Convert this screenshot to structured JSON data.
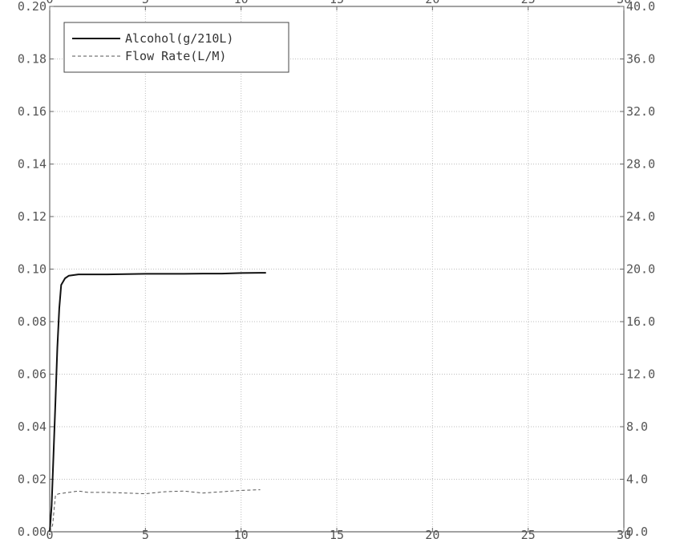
{
  "chart_data": {
    "type": "line",
    "title": "",
    "xlabel": "",
    "ylabel": "",
    "y2label": "",
    "xlim": [
      0,
      30
    ],
    "ylim": [
      0,
      0.2
    ],
    "y2lim": [
      0,
      40
    ],
    "grid": true,
    "legend_position": "top-left",
    "x_ticks": [
      {
        "value": 0,
        "label": "0"
      },
      {
        "value": 5,
        "label": "5"
      },
      {
        "value": 10,
        "label": "10"
      },
      {
        "value": 15,
        "label": "15"
      },
      {
        "value": 20,
        "label": "20"
      },
      {
        "value": 25,
        "label": "25"
      },
      {
        "value": 30,
        "label": "30"
      }
    ],
    "y_ticks": [
      {
        "value": 0.0,
        "label": "0.00"
      },
      {
        "value": 0.02,
        "label": "0.02"
      },
      {
        "value": 0.04,
        "label": "0.04"
      },
      {
        "value": 0.06,
        "label": "0.06"
      },
      {
        "value": 0.08,
        "label": "0.08"
      },
      {
        "value": 0.1,
        "label": "0.10"
      },
      {
        "value": 0.12,
        "label": "0.12"
      },
      {
        "value": 0.14,
        "label": "0.14"
      },
      {
        "value": 0.16,
        "label": "0.16"
      },
      {
        "value": 0.18,
        "label": "0.18"
      },
      {
        "value": 0.2,
        "label": "0.20"
      }
    ],
    "y2_ticks": [
      {
        "value": 0,
        "label": "0.0"
      },
      {
        "value": 4,
        "label": "4.0"
      },
      {
        "value": 8,
        "label": "8.0"
      },
      {
        "value": 12,
        "label": "12.0"
      },
      {
        "value": 16,
        "label": "16.0"
      },
      {
        "value": 20,
        "label": "20.0"
      },
      {
        "value": 24,
        "label": "24.0"
      },
      {
        "value": 28,
        "label": "28.0"
      },
      {
        "value": 32,
        "label": "32.0"
      },
      {
        "value": 36,
        "label": "36.0"
      },
      {
        "value": 40,
        "label": "40.0"
      }
    ],
    "series": [
      {
        "name": "Alcohol(g/210L)",
        "axis": "left",
        "style": "solid",
        "color": "#111111",
        "points": [
          [
            0,
            0
          ],
          [
            0.1,
            0.01
          ],
          [
            0.2,
            0.03
          ],
          [
            0.3,
            0.05
          ],
          [
            0.4,
            0.07
          ],
          [
            0.5,
            0.085
          ],
          [
            0.6,
            0.094
          ],
          [
            0.8,
            0.0965
          ],
          [
            1.0,
            0.0975
          ],
          [
            1.5,
            0.098
          ],
          [
            2,
            0.098
          ],
          [
            3,
            0.098
          ],
          [
            4,
            0.0981
          ],
          [
            5,
            0.0982
          ],
          [
            6,
            0.0982
          ],
          [
            7,
            0.0982
          ],
          [
            8,
            0.0983
          ],
          [
            9,
            0.0983
          ],
          [
            10,
            0.0985
          ],
          [
            11,
            0.0986
          ],
          [
            11.3,
            0.0986
          ]
        ]
      },
      {
        "name": "Flow Rate(L/M)",
        "axis": "right",
        "style": "dashed",
        "color": "#555555",
        "points": [
          [
            0,
            0
          ],
          [
            0.15,
            0.5
          ],
          [
            0.3,
            2.8
          ],
          [
            0.5,
            2.9
          ],
          [
            1,
            3.0
          ],
          [
            1.5,
            3.1
          ],
          [
            2,
            3.0
          ],
          [
            3,
            3.0
          ],
          [
            4,
            2.95
          ],
          [
            5,
            2.9
          ],
          [
            6,
            3.05
          ],
          [
            7,
            3.1
          ],
          [
            8,
            2.95
          ],
          [
            9,
            3.05
          ],
          [
            10,
            3.15
          ],
          [
            11,
            3.2
          ]
        ]
      }
    ]
  },
  "colors": {
    "background": "#ffffff",
    "grid": "#bdbdbd",
    "frame": "#444444",
    "text": "#555555"
  }
}
